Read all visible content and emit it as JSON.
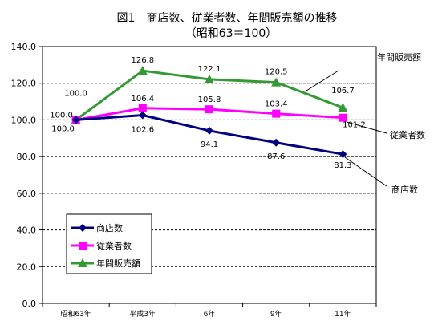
{
  "chart_data": {
    "type": "line",
    "title": "図1　商店数、従業者数、年間販売額の推移",
    "subtitle": "（昭和63＝100）",
    "categories": [
      "昭和63年",
      "平成3年",
      "6年",
      "9年",
      "11年"
    ],
    "ylim": [
      0,
      140
    ],
    "yticks": [
      "0.0",
      "20.0",
      "40.0",
      "60.0",
      "80.0",
      "100.0",
      "120.0",
      "140.0"
    ],
    "grid": true,
    "legend_position": "bottom-left",
    "series": [
      {
        "name": "商店数",
        "values": [
          100.0,
          102.6,
          94.1,
          87.6,
          81.3
        ],
        "labels": [
          "100.0",
          "102.6",
          "94.1",
          "87.6",
          "81.3"
        ],
        "color": "#000080",
        "marker": "diamond"
      },
      {
        "name": "従業者数",
        "values": [
          100.0,
          106.4,
          105.8,
          103.4,
          101.2
        ],
        "labels": [
          "100.0",
          "106.4",
          "105.8",
          "103.4",
          "101.2"
        ],
        "color": "#ff00ff",
        "marker": "square"
      },
      {
        "name": "年間販売額",
        "values": [
          100.0,
          126.8,
          122.1,
          120.5,
          106.7
        ],
        "labels": [
          "100.0",
          "126.8",
          "122.1",
          "120.5",
          "106.7"
        ],
        "color": "#339933",
        "marker": "triangle"
      }
    ],
    "annotations": [
      "年間販売額",
      "従業者数",
      "商店数"
    ]
  }
}
